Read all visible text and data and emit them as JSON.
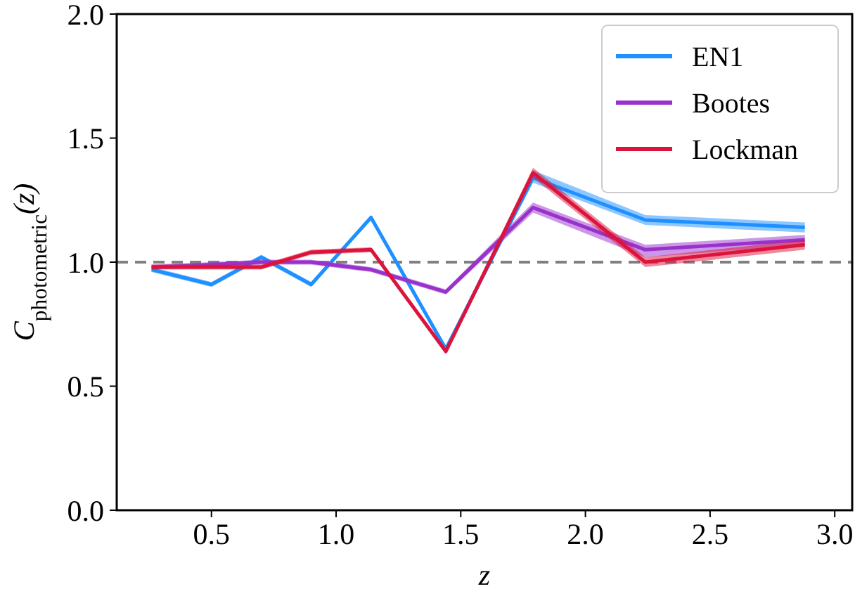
{
  "chart_data": {
    "type": "line",
    "xlabel": "z",
    "ylabel": "C$_{photometric}$(z)",
    "x": [
      0.26,
      0.5,
      0.7,
      0.9,
      1.14,
      1.44,
      1.79,
      2.24,
      2.88
    ],
    "series": [
      {
        "name": "EN1",
        "color": "#1e90ff",
        "values": [
          0.97,
          0.91,
          1.02,
          0.91,
          1.18,
          0.65,
          1.34,
          1.17,
          1.14
        ],
        "lower": [
          0.96,
          0.9,
          1.01,
          0.9,
          1.17,
          0.64,
          1.32,
          1.15,
          1.12
        ],
        "upper": [
          0.98,
          0.92,
          1.03,
          0.92,
          1.19,
          0.66,
          1.37,
          1.19,
          1.16
        ]
      },
      {
        "name": "Bootes",
        "color": "#9932cc",
        "values": [
          0.98,
          0.99,
          1.0,
          1.0,
          0.97,
          0.88,
          1.22,
          1.05,
          1.09
        ],
        "lower": [
          0.97,
          0.98,
          0.99,
          0.99,
          0.96,
          0.87,
          1.2,
          1.02,
          1.07
        ],
        "upper": [
          0.99,
          1.0,
          1.01,
          1.01,
          0.98,
          0.89,
          1.24,
          1.07,
          1.11
        ]
      },
      {
        "name": "Lockman",
        "color": "#dc143c",
        "values": [
          0.98,
          0.98,
          0.98,
          1.04,
          1.05,
          0.64,
          1.36,
          1.0,
          1.07
        ],
        "lower": [
          0.97,
          0.97,
          0.97,
          1.03,
          1.04,
          0.63,
          1.34,
          0.98,
          1.05
        ],
        "upper": [
          0.99,
          0.99,
          0.99,
          1.05,
          1.06,
          0.65,
          1.38,
          1.02,
          1.09
        ]
      }
    ],
    "xlim": [
      0.12,
      3.07
    ],
    "xticks": [
      {
        "value": 0.5,
        "label": "0.5"
      },
      {
        "value": 1.0,
        "label": "1.0"
      },
      {
        "value": 1.5,
        "label": "1.5"
      },
      {
        "value": 2.0,
        "label": "2.0"
      },
      {
        "value": 2.5,
        "label": "2.5"
      },
      {
        "value": 3.0,
        "label": "3.0"
      }
    ],
    "ylim": [
      0,
      2
    ],
    "yticks": [
      {
        "value": 0,
        "label": "0.0"
      },
      {
        "value": 0.5,
        "label": "0.5"
      },
      {
        "value": 1.0,
        "label": "1.0"
      },
      {
        "value": 1.5,
        "label": "1.5"
      },
      {
        "value": 2.0,
        "label": "2.0"
      }
    ],
    "ref_lines": [
      {
        "axis": "y",
        "value": 1.0,
        "color": "#808080",
        "line_style": "dashed"
      }
    ],
    "legend": "top right",
    "grid": false,
    "line_style": "solid",
    "marker": "none"
  }
}
